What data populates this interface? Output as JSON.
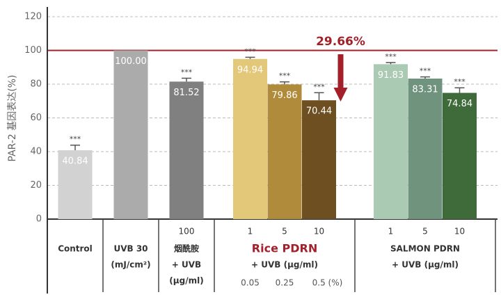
{
  "chart_data": {
    "type": "bar",
    "y_label": "PAR-2 基因表达(%)",
    "ylim": [
      0,
      120
    ],
    "yticks": [
      0,
      20,
      40,
      60,
      80,
      100,
      120
    ],
    "grid": true,
    "reference_line": 100,
    "reference_color": "#a3202a",
    "annotation": "29.66%",
    "groups": [
      {
        "labels": [
          "Control"
        ],
        "categories": [
          null
        ],
        "values": [
          40.84
        ],
        "errors": [
          3
        ],
        "significance": [
          "***"
        ],
        "colors": [
          "#d2d2d2"
        ]
      },
      {
        "labels": [
          "UVB 30",
          "(mJ/cm²)"
        ],
        "categories": [
          null
        ],
        "values": [
          100
        ],
        "value_labels": [
          "100.00"
        ],
        "errors": [
          0
        ],
        "significance": [
          null
        ],
        "colors": [
          "#ababab"
        ]
      },
      {
        "labels": [
          "烟酰胺",
          "+ UVB",
          "(μg/ml)"
        ],
        "categories": [
          "100"
        ],
        "values": [
          81.52
        ],
        "errors": [
          2
        ],
        "significance": [
          "***"
        ],
        "colors": [
          "#808080"
        ]
      },
      {
        "labels": [
          "Rice PDRN",
          "+ UVB (μg/ml)"
        ],
        "title_color": "#a3202a",
        "categories": [
          "1",
          "5",
          "10"
        ],
        "concentrations": [
          "0.05",
          "0.25",
          "0.5 (%)"
        ],
        "values": [
          94.94,
          79.86,
          70.44
        ],
        "errors": [
          1,
          1.5,
          4.5
        ],
        "significance": [
          "***",
          "***",
          "***"
        ],
        "colors": [
          "#e4c87a",
          "#b08b3c",
          "#6e4f22"
        ]
      },
      {
        "labels": [
          "SALMON PDRN",
          "+ UVB (μg/ml)"
        ],
        "categories": [
          "1",
          "5",
          "10"
        ],
        "values": [
          91.83,
          83.31,
          74.84
        ],
        "errors": [
          1,
          1,
          3
        ],
        "significance": [
          "***",
          "***",
          "***"
        ],
        "colors": [
          "#abcab3",
          "#6f937d",
          "#3f6b3b"
        ]
      }
    ]
  }
}
